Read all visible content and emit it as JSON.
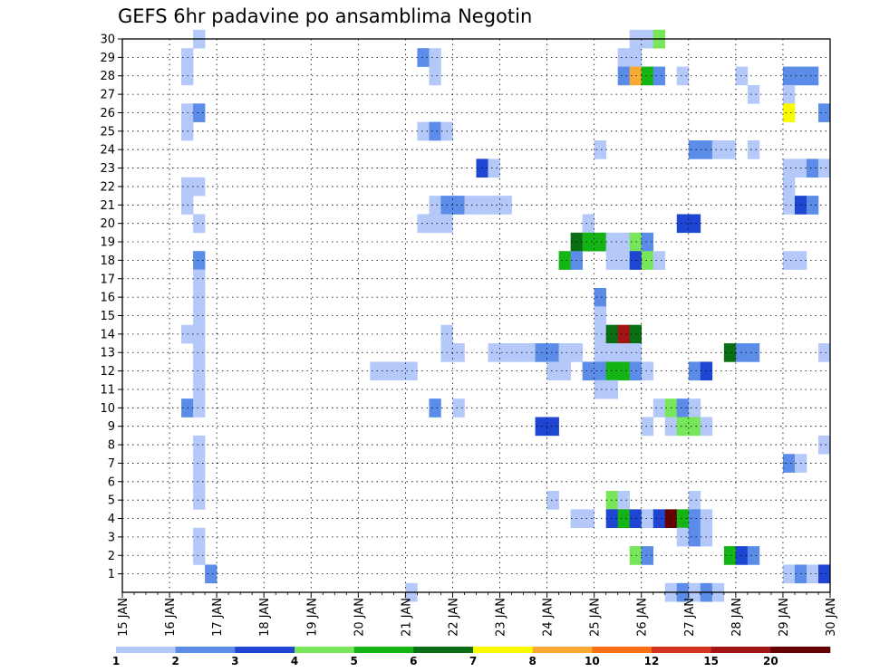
{
  "chart_data": {
    "type": "heatmap",
    "title": "GEFS 6hr padavine po ansamblima Negotin",
    "xlabel": "",
    "ylabel": "",
    "x_tick_labels": [
      "15 JAN",
      "16 JAN",
      "17 JAN",
      "18 JAN",
      "19 JAN",
      "20 JAN",
      "21 JAN",
      "22 JAN",
      "23 JAN",
      "24 JAN",
      "25 JAN",
      "26 JAN",
      "27 JAN",
      "28 JAN",
      "29 JAN",
      "30 JAN"
    ],
    "xlim": [
      0,
      60
    ],
    "steps_per_day": 4,
    "ylim": [
      0,
      30
    ],
    "y_tick_labels": [
      "1",
      "2",
      "3",
      "4",
      "5",
      "6",
      "7",
      "8",
      "9",
      "10",
      "11",
      "12",
      "13",
      "14",
      "15",
      "16",
      "17",
      "18",
      "19",
      "20",
      "21",
      "22",
      "23",
      "24",
      "25",
      "26",
      "27",
      "28",
      "29",
      "30"
    ],
    "grid": true,
    "legend": {
      "placement": "bottom",
      "labels": [
        "1",
        "2",
        "3",
        "4",
        "5",
        "6",
        "7",
        "8",
        "10",
        "12",
        "15",
        "20"
      ],
      "colors": [
        "#b4c8fa",
        "#5a8ce8",
        "#1e46d2",
        "#78e65a",
        "#14b414",
        "#0a6e14",
        "#fafa00",
        "#faaa32",
        "#fa6e14",
        "#d2321e",
        "#a01414",
        "#640000"
      ]
    },
    "cell_format": "[member, time_step_index, color_class_index]",
    "cells": [
      [
        30,
        6,
        0
      ],
      [
        29,
        5,
        0
      ],
      [
        28,
        5,
        0
      ],
      [
        26,
        5,
        0
      ],
      [
        25,
        5,
        0
      ],
      [
        22,
        5,
        0
      ],
      [
        22,
        6,
        0
      ],
      [
        21,
        5,
        0
      ],
      [
        20,
        6,
        0
      ],
      [
        18,
        6,
        1
      ],
      [
        17,
        6,
        0
      ],
      [
        16,
        6,
        0
      ],
      [
        15,
        6,
        0
      ],
      [
        14,
        5,
        0
      ],
      [
        14,
        6,
        0
      ],
      [
        13,
        6,
        0
      ],
      [
        12,
        6,
        0
      ],
      [
        11,
        6,
        0
      ],
      [
        10,
        5,
        1
      ],
      [
        10,
        6,
        0
      ],
      [
        8,
        6,
        0
      ],
      [
        7,
        6,
        0
      ],
      [
        6,
        6,
        0
      ],
      [
        5,
        6,
        0
      ],
      [
        3,
        6,
        0
      ],
      [
        2,
        6,
        0
      ],
      [
        1,
        7,
        1
      ],
      [
        26,
        6,
        1
      ],
      [
        29,
        25,
        1
      ],
      [
        29,
        26,
        0
      ],
      [
        28,
        26,
        0
      ],
      [
        25,
        25,
        0
      ],
      [
        25,
        26,
        1
      ],
      [
        25,
        27,
        0
      ],
      [
        21,
        26,
        0
      ],
      [
        21,
        27,
        1
      ],
      [
        21,
        28,
        1
      ],
      [
        21,
        29,
        0
      ],
      [
        21,
        30,
        0
      ],
      [
        21,
        31,
        0
      ],
      [
        21,
        32,
        0
      ],
      [
        20,
        25,
        0
      ],
      [
        20,
        26,
        0
      ],
      [
        20,
        27,
        0
      ],
      [
        23,
        30,
        2
      ],
      [
        23,
        31,
        0
      ],
      [
        14,
        27,
        0
      ],
      [
        13,
        27,
        0
      ],
      [
        13,
        28,
        0
      ],
      [
        12,
        21,
        0
      ],
      [
        12,
        22,
        0
      ],
      [
        12,
        23,
        0
      ],
      [
        12,
        24,
        0
      ],
      [
        13,
        31,
        0
      ],
      [
        13,
        32,
        0
      ],
      [
        13,
        33,
        0
      ],
      [
        13,
        34,
        0
      ],
      [
        13,
        35,
        1
      ],
      [
        13,
        36,
        1
      ],
      [
        13,
        37,
        0
      ],
      [
        13,
        38,
        0
      ],
      [
        12,
        36,
        0
      ],
      [
        12,
        37,
        0
      ],
      [
        10,
        26,
        1
      ],
      [
        10,
        28,
        0
      ],
      [
        9,
        35,
        2
      ],
      [
        9,
        36,
        2
      ],
      [
        5,
        36,
        0
      ],
      [
        4,
        38,
        0
      ],
      [
        4,
        39,
        0
      ],
      [
        0,
        24,
        0
      ],
      [
        30,
        43,
        0
      ],
      [
        30,
        44,
        0
      ],
      [
        30,
        45,
        3
      ],
      [
        29,
        42,
        0
      ],
      [
        29,
        43,
        0
      ],
      [
        28,
        42,
        1
      ],
      [
        28,
        43,
        7
      ],
      [
        28,
        44,
        4
      ],
      [
        28,
        45,
        1
      ],
      [
        28,
        47,
        0
      ],
      [
        28,
        52,
        0
      ],
      [
        28,
        56,
        1
      ],
      [
        28,
        57,
        1
      ],
      [
        28,
        58,
        1
      ],
      [
        27,
        53,
        0
      ],
      [
        27,
        56,
        0
      ],
      [
        26,
        56,
        6
      ],
      [
        26,
        59,
        1
      ],
      [
        24,
        40,
        0
      ],
      [
        24,
        48,
        1
      ],
      [
        24,
        49,
        1
      ],
      [
        24,
        50,
        0
      ],
      [
        24,
        51,
        0
      ],
      [
        24,
        53,
        0
      ],
      [
        23,
        56,
        0
      ],
      [
        23,
        57,
        0
      ],
      [
        23,
        58,
        1
      ],
      [
        23,
        59,
        0
      ],
      [
        22,
        56,
        0
      ],
      [
        21,
        56,
        0
      ],
      [
        21,
        57,
        2
      ],
      [
        21,
        58,
        1
      ],
      [
        20,
        39,
        0
      ],
      [
        20,
        47,
        2
      ],
      [
        20,
        48,
        2
      ],
      [
        19,
        38,
        5
      ],
      [
        19,
        39,
        4
      ],
      [
        19,
        40,
        4
      ],
      [
        19,
        41,
        0
      ],
      [
        19,
        42,
        0
      ],
      [
        19,
        43,
        3
      ],
      [
        19,
        44,
        1
      ],
      [
        18,
        37,
        4
      ],
      [
        18,
        38,
        1
      ],
      [
        18,
        41,
        0
      ],
      [
        18,
        42,
        0
      ],
      [
        18,
        43,
        2
      ],
      [
        18,
        44,
        3
      ],
      [
        18,
        45,
        0
      ],
      [
        18,
        56,
        0
      ],
      [
        18,
        57,
        0
      ],
      [
        16,
        40,
        1
      ],
      [
        15,
        40,
        0
      ],
      [
        14,
        40,
        0
      ],
      [
        14,
        41,
        5
      ],
      [
        14,
        42,
        10
      ],
      [
        14,
        43,
        5
      ],
      [
        13,
        40,
        0
      ],
      [
        13,
        41,
        0
      ],
      [
        13,
        42,
        0
      ],
      [
        13,
        43,
        0
      ],
      [
        13,
        51,
        5
      ],
      [
        13,
        52,
        1
      ],
      [
        13,
        53,
        1
      ],
      [
        13,
        59,
        0
      ],
      [
        12,
        39,
        1
      ],
      [
        12,
        40,
        1
      ],
      [
        12,
        41,
        4
      ],
      [
        12,
        42,
        4
      ],
      [
        12,
        43,
        1
      ],
      [
        12,
        44,
        0
      ],
      [
        12,
        48,
        1
      ],
      [
        12,
        49,
        2
      ],
      [
        11,
        40,
        0
      ],
      [
        11,
        41,
        0
      ],
      [
        10,
        45,
        0
      ],
      [
        10,
        46,
        3
      ],
      [
        10,
        47,
        1
      ],
      [
        10,
        48,
        0
      ],
      [
        9,
        44,
        0
      ],
      [
        9,
        46,
        0
      ],
      [
        9,
        47,
        3
      ],
      [
        9,
        48,
        3
      ],
      [
        9,
        49,
        0
      ],
      [
        8,
        59,
        0
      ],
      [
        7,
        56,
        1
      ],
      [
        7,
        57,
        0
      ],
      [
        5,
        41,
        3
      ],
      [
        5,
        42,
        0
      ],
      [
        5,
        48,
        0
      ],
      [
        4,
        41,
        2
      ],
      [
        4,
        42,
        4
      ],
      [
        4,
        43,
        2
      ],
      [
        4,
        44,
        0
      ],
      [
        4,
        45,
        2
      ],
      [
        4,
        46,
        11
      ],
      [
        4,
        47,
        4
      ],
      [
        4,
        48,
        1
      ],
      [
        4,
        49,
        0
      ],
      [
        3,
        47,
        0
      ],
      [
        3,
        48,
        1
      ],
      [
        3,
        49,
        0
      ],
      [
        2,
        43,
        3
      ],
      [
        2,
        44,
        1
      ],
      [
        2,
        51,
        4
      ],
      [
        2,
        52,
        2
      ],
      [
        2,
        53,
        1
      ],
      [
        1,
        56,
        0
      ],
      [
        1,
        57,
        1
      ],
      [
        1,
        58,
        0
      ],
      [
        1,
        59,
        2
      ],
      [
        0,
        46,
        0
      ],
      [
        0,
        47,
        1
      ],
      [
        0,
        48,
        0
      ],
      [
        0,
        49,
        1
      ],
      [
        0,
        50,
        0
      ]
    ]
  }
}
